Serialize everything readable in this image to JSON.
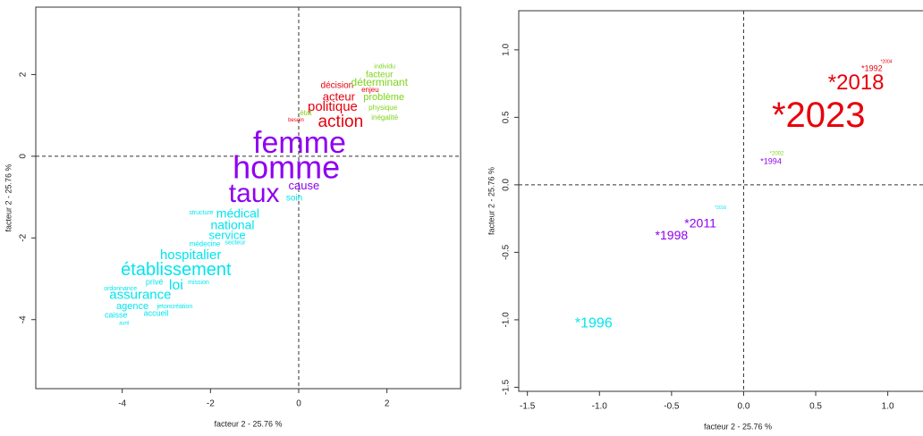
{
  "chart_data": [
    {
      "type": "scatter",
      "xlabel": "facteur 2 - 25.76 %",
      "ylabel": "facteur 2 - 25.76 %",
      "xlim": [
        -5.96,
        3.67
      ],
      "ylim": [
        -5.69,
        3.65
      ],
      "xticks": [
        -4,
        -2,
        0,
        2
      ],
      "yticks": [
        -4,
        -2,
        0,
        2
      ],
      "hline": 0,
      "vline": 0,
      "labels": [
        "femme",
        "homme",
        "taux",
        "cause",
        "soin",
        "action",
        "politique",
        "acteur",
        "décision",
        "enjeu",
        "besoin",
        "déterminant",
        "problème",
        "facteur",
        "individu",
        "état",
        "physique",
        "inégalité",
        "médical",
        "structure",
        "national",
        "service",
        "médecine",
        "secteur",
        "hospitalier",
        "établissement",
        "loi",
        "privé",
        "mission",
        "ordonnance",
        "assurance",
        "agence",
        "jeton",
        "création",
        "accueil",
        "caisse",
        "avril"
      ],
      "x": [
        0.02,
        -0.28,
        -1.01,
        0.12,
        -0.1,
        0.95,
        0.77,
        0.91,
        0.87,
        1.62,
        -0.06,
        1.83,
        1.93,
        1.83,
        1.95,
        0.16,
        1.91,
        1.95,
        -1.38,
        -2.21,
        -1.5,
        -1.62,
        -2.13,
        -1.44,
        -2.45,
        -2.78,
        -2.78,
        -3.27,
        -2.27,
        -4.04,
        -3.59,
        -3.77,
        -3.06,
        -2.66,
        -3.23,
        -4.14,
        -3.96
      ],
      "values": [
        0.28,
        -0.33,
        -0.94,
        -0.74,
        -1.03,
        0.83,
        1.2,
        1.44,
        1.73,
        1.62,
        0.88,
        1.79,
        1.44,
        1.99,
        2.19,
        1.05,
        1.18,
        0.94,
        -1.42,
        -1.38,
        -1.71,
        -1.95,
        -2.15,
        -2.12,
        -2.43,
        -2.8,
        -3.17,
        -3.09,
        -3.09,
        -3.24,
        -3.41,
        -3.68,
        -3.68,
        -3.68,
        -3.85,
        -3.9,
        -4.09
      ],
      "sizes": [
        34,
        36,
        30,
        13,
        10,
        19,
        15,
        13,
        10,
        8,
        6,
        12,
        11,
        10,
        7,
        8,
        8,
        8,
        14,
        7,
        14,
        13,
        8,
        7,
        15,
        20,
        16,
        9,
        7,
        7,
        15,
        11,
        7,
        7,
        9,
        9,
        6
      ],
      "colors": [
        "#8f00f0",
        "#8f00f0",
        "#8f00f0",
        "#8f00f0",
        "#00e5ee",
        "#e8000b",
        "#e8000b",
        "#e8000b",
        "#e8000b",
        "#e8000b",
        "#e8000b",
        "#7cd41a",
        "#7cd41a",
        "#7cd41a",
        "#7cd41a",
        "#7cd41a",
        "#7cd41a",
        "#7cd41a",
        "#00e5ee",
        "#00e5ee",
        "#00e5ee",
        "#00e5ee",
        "#00e5ee",
        "#00e5ee",
        "#00e5ee",
        "#00e5ee",
        "#00e5ee",
        "#00e5ee",
        "#00e5ee",
        "#00e5ee",
        "#00e5ee",
        "#00e5ee",
        "#00e5ee",
        "#00e5ee",
        "#00e5ee",
        "#00e5ee",
        "#00e5ee"
      ]
    },
    {
      "type": "scatter",
      "xlabel": "facteur 2 - 25.76 %",
      "ylabel": "facteur 2 - 25.76 %",
      "xlim": [
        -1.56,
        1.48
      ],
      "ylim": [
        -1.53,
        1.29
      ],
      "xticks": [
        -1.5,
        {
          "value": -1.0,
          "label": "-1.0"
        },
        -0.5,
        {
          "value": 0.0,
          "label": "0.0"
        },
        0.5,
        {
          "value": 1.0,
          "label": "1.0"
        }
      ],
      "yticks": [
        -1.5,
        {
          "value": -1.0,
          "label": "-1.0"
        },
        -0.5,
        {
          "value": 0.0,
          "label": "0.0"
        },
        0.5,
        {
          "value": 1.0,
          "label": "1.0"
        }
      ],
      "hline": 0,
      "vline": 0,
      "labels": [
        "*2023",
        "*2018",
        "*1992",
        "*2004",
        "*2002",
        "*1994",
        "*2016",
        "*2011",
        "*1998",
        "*1996"
      ],
      "x": [
        0.52,
        0.78,
        0.89,
        0.99,
        0.23,
        0.19,
        -0.16,
        -0.3,
        -0.5,
        -1.04
      ],
      "values": [
        0.5,
        0.75,
        0.86,
        0.91,
        0.23,
        0.17,
        -0.17,
        -0.29,
        -0.38,
        -1.03
      ],
      "sizes": [
        40,
        24,
        9,
        5,
        6,
        9,
        5,
        14,
        14,
        16
      ],
      "colors": [
        "#e8000b",
        "#e8000b",
        "#e8000b",
        "#e8000b",
        "#7cd41a",
        "#8f00f0",
        "#00e5ee",
        "#8f00f0",
        "#8f00f0",
        "#00e5ee"
      ]
    }
  ]
}
